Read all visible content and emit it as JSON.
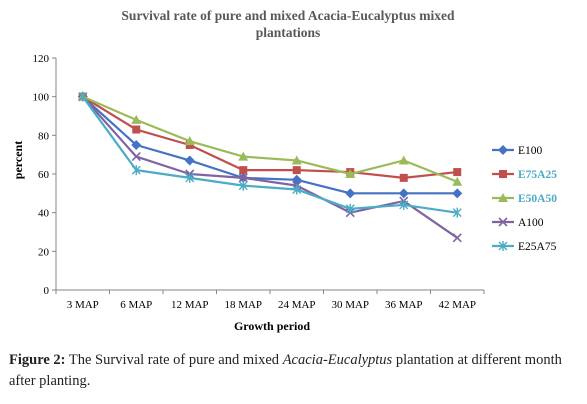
{
  "caption": {
    "label": "Figure 2:",
    "before": " The Survival rate of pure and mixed ",
    "italic": "Acacia-Eucalyptus",
    "after": " plantation at different month after planting."
  },
  "chart_data": {
    "type": "line",
    "title_lines": [
      "Survival rate  of pure and mixed Acacia-Eucalyptus mixed",
      "plantations"
    ],
    "xlabel": "Growth period",
    "ylabel": "percent",
    "categories": [
      "3 MAP",
      "6 MAP",
      "12 MAP",
      "18 MAP",
      "24 MAP",
      "30 MAP",
      "36 MAP",
      "42 MAP"
    ],
    "ylim": [
      0,
      120
    ],
    "yticks": [
      0,
      20,
      40,
      60,
      80,
      100,
      120
    ],
    "grid": false,
    "legend_position": "right",
    "series": [
      {
        "name": "E100",
        "color": "#4472C4",
        "marker": "diamond",
        "legend_text_color": "#000000",
        "values": [
          100,
          75,
          67,
          58,
          57,
          50,
          50,
          50
        ]
      },
      {
        "name": "E75A25",
        "color": "#C0504D",
        "marker": "square",
        "legend_text_color": "#4BACC6",
        "legend_bold": true,
        "values": [
          100,
          83,
          75,
          62,
          62,
          61,
          58,
          61
        ]
      },
      {
        "name": "E50A50",
        "color": "#9BBB59",
        "marker": "triangle",
        "legend_text_color": "#4BACC6",
        "legend_bold": true,
        "values": [
          100,
          88,
          77,
          69,
          67,
          60,
          67,
          56
        ]
      },
      {
        "name": "A100",
        "color": "#8064A2",
        "marker": "x",
        "legend_text_color": "#000000",
        "values": [
          100,
          69,
          60,
          58,
          54,
          40,
          46,
          27
        ]
      },
      {
        "name": "E25A75",
        "color": "#4BACC6",
        "marker": "star",
        "legend_text_color": "#000000",
        "values": [
          100,
          62,
          58,
          54,
          52,
          42,
          44,
          40
        ]
      }
    ]
  }
}
